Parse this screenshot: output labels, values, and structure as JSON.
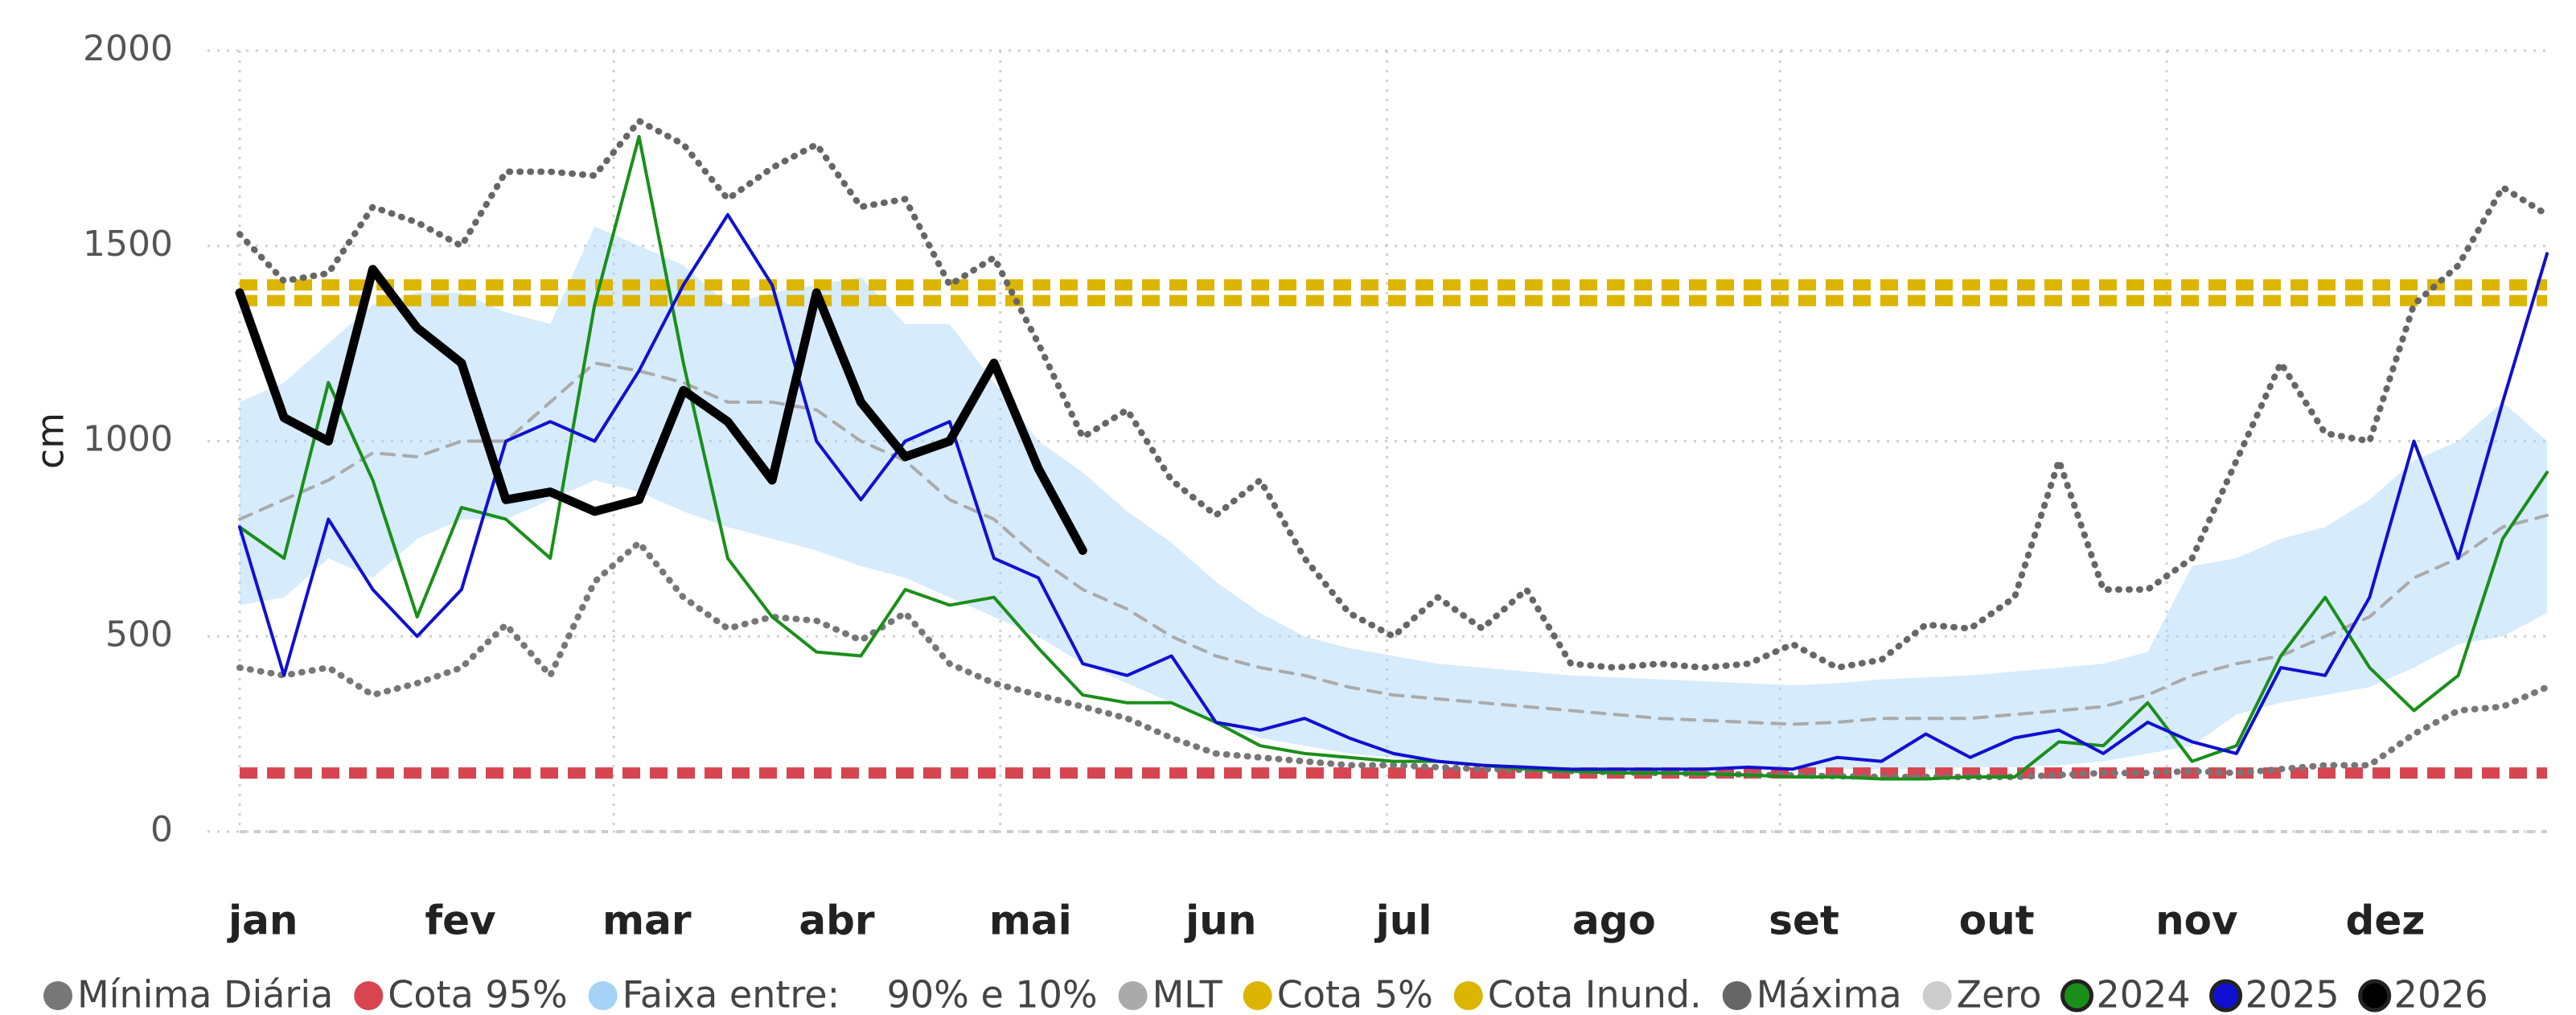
{
  "chart_data": {
    "type": "line",
    "y_label": "cm",
    "xlim": [
      1,
      365
    ],
    "ylim": [
      0,
      2000
    ],
    "yticks": [
      0,
      500,
      1000,
      1500,
      2000
    ],
    "grid": true,
    "xticks": [
      {
        "value": 1,
        "label": "jan"
      },
      {
        "value": 32,
        "label": "fev"
      },
      {
        "value": 60,
        "label": "mar"
      },
      {
        "value": 91,
        "label": "abr"
      },
      {
        "value": 121,
        "label": "mai"
      },
      {
        "value": 152,
        "label": "jun"
      },
      {
        "value": 182,
        "label": "jul"
      },
      {
        "value": 213,
        "label": "ago"
      },
      {
        "value": 244,
        "label": "set"
      },
      {
        "value": 274,
        "label": "out"
      },
      {
        "value": 305,
        "label": "nov"
      },
      {
        "value": 335,
        "label": "dez"
      }
    ],
    "x": [
      1,
      8,
      15,
      22,
      29,
      36,
      43,
      50,
      57,
      64,
      71,
      78,
      85,
      92,
      99,
      106,
      113,
      120,
      127,
      134,
      141,
      148,
      155,
      162,
      169,
      176,
      183,
      190,
      197,
      204,
      211,
      218,
      225,
      232,
      239,
      246,
      253,
      260,
      267,
      274,
      281,
      288,
      295,
      302,
      309,
      316,
      323,
      330,
      337,
      344,
      351,
      358,
      365
    ],
    "series": [
      {
        "name": "Mínima Diária",
        "style": "dotted",
        "color": "#777777",
        "values": [
          420,
          400,
          420,
          350,
          380,
          420,
          530,
          400,
          640,
          740,
          600,
          520,
          550,
          540,
          490,
          560,
          430,
          380,
          350,
          320,
          290,
          240,
          200,
          190,
          180,
          170,
          170,
          165,
          160,
          158,
          155,
          152,
          150,
          148,
          146,
          144,
          142,
          140,
          140,
          140,
          140,
          145,
          150,
          150,
          155,
          150,
          160,
          170,
          170,
          250,
          310,
          320,
          370
        ]
      },
      {
        "name": "Cota 95%",
        "style": "hline",
        "color": "#d64550",
        "value": 150
      },
      {
        "name": "Faixa entre:    90% e 10%",
        "style": "band",
        "color": "#a5d3f8",
        "upper": [
          1100,
          1150,
          1250,
          1350,
          1380,
          1380,
          1330,
          1300,
          1550,
          1500,
          1450,
          1350,
          1380,
          1400,
          1420,
          1300,
          1300,
          1150,
          1000,
          920,
          820,
          740,
          640,
          560,
          500,
          470,
          450,
          430,
          420,
          410,
          400,
          395,
          390,
          385,
          380,
          375,
          380,
          390,
          395,
          400,
          410,
          420,
          430,
          460,
          680,
          700,
          750,
          780,
          850,
          950,
          1000,
          1100,
          1000
        ],
        "lower": [
          580,
          600,
          700,
          650,
          750,
          800,
          800,
          850,
          900,
          870,
          820,
          780,
          750,
          720,
          680,
          650,
          600,
          550,
          500,
          430,
          380,
          330,
          280,
          240,
          220,
          200,
          190,
          180,
          175,
          170,
          165,
          160,
          160,
          160,
          160,
          160,
          160,
          160,
          160,
          165,
          165,
          170,
          180,
          200,
          220,
          300,
          330,
          350,
          370,
          420,
          480,
          500,
          560
        ]
      },
      {
        "name": "MLT",
        "style": "dashed",
        "color": "#aaaaaa",
        "values": [
          800,
          850,
          900,
          970,
          960,
          1000,
          1000,
          1100,
          1200,
          1180,
          1150,
          1100,
          1100,
          1080,
          1000,
          950,
          850,
          800,
          700,
          620,
          570,
          500,
          450,
          420,
          400,
          370,
          350,
          340,
          330,
          320,
          310,
          300,
          290,
          285,
          280,
          275,
          280,
          290,
          290,
          290,
          300,
          310,
          320,
          350,
          400,
          430,
          450,
          500,
          550,
          650,
          700,
          780,
          810
        ]
      },
      {
        "name": "Cota 5%",
        "style": "hline",
        "color": "#dcb500",
        "value": 1360
      },
      {
        "name": "Cota Inund.",
        "style": "hline",
        "color": "#dcb500",
        "value": 1400
      },
      {
        "name": "Máxima",
        "style": "dotted",
        "color": "#666666",
        "values": [
          1530,
          1410,
          1430,
          1600,
          1560,
          1500,
          1690,
          1690,
          1680,
          1820,
          1760,
          1620,
          1700,
          1760,
          1600,
          1620,
          1400,
          1470,
          1250,
          1010,
          1080,
          900,
          810,
          900,
          700,
          560,
          500,
          600,
          520,
          620,
          430,
          420,
          430,
          420,
          430,
          480,
          420,
          440,
          530,
          520,
          600,
          950,
          620,
          620,
          700,
          950,
          1200,
          1020,
          1000,
          1350,
          1450,
          1650,
          1580
        ]
      },
      {
        "name": "Zero",
        "style": "hline",
        "color": "#cccccc",
        "value": 0
      },
      {
        "name": "2024",
        "style": "line",
        "color": "#1a8f1a",
        "values": [
          780,
          700,
          1150,
          900,
          550,
          830,
          800,
          700,
          1350,
          1780,
          1200,
          700,
          550,
          460,
          450,
          620,
          580,
          600,
          470,
          350,
          330,
          330,
          280,
          220,
          200,
          190,
          180,
          180,
          170,
          160,
          155,
          150,
          150,
          148,
          145,
          140,
          140,
          135,
          135,
          140,
          140,
          230,
          220,
          330,
          180,
          220,
          450,
          600,
          420,
          310,
          400,
          750,
          920
        ]
      },
      {
        "name": "2025",
        "style": "line",
        "color": "#1010d0",
        "values": [
          780,
          400,
          800,
          620,
          500,
          620,
          1000,
          1050,
          1000,
          1180,
          1400,
          1580,
          1400,
          1000,
          850,
          1000,
          1050,
          700,
          650,
          430,
          400,
          450,
          280,
          260,
          290,
          240,
          200,
          180,
          170,
          165,
          160,
          160,
          160,
          160,
          165,
          160,
          190,
          180,
          250,
          190,
          240,
          260,
          200,
          280,
          230,
          200,
          420,
          400,
          600,
          1000,
          700,
          1100,
          1480
        ]
      },
      {
        "name": "2026",
        "style": "bold",
        "color": "#000000",
        "values": [
          1380,
          1060,
          1000,
          1440,
          1290,
          1200,
          850,
          870,
          820,
          850,
          1130,
          1050,
          900,
          1380,
          1100,
          960,
          1000,
          1200,
          930,
          720,
          null,
          null,
          null,
          null,
          null,
          null,
          null,
          null,
          null,
          null,
          null,
          null,
          null,
          null,
          null,
          null,
          null,
          null,
          null,
          null,
          null,
          null,
          null,
          null,
          null,
          null,
          null,
          null,
          null,
          null,
          null,
          null,
          null
        ]
      }
    ]
  }
}
